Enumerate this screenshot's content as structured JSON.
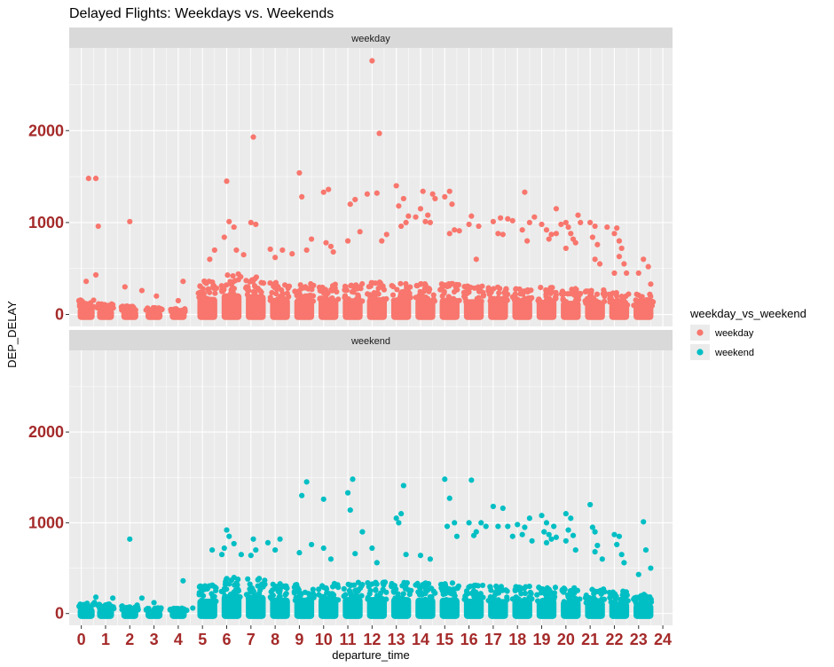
{
  "chart_data": {
    "type": "scatter",
    "title": "Delayed Flights: Weekdays vs. Weekends",
    "xlabel": "departure_time",
    "ylabel": "DEP_DELAY",
    "xlim": [
      -0.5,
      24.4
    ],
    "ylim": [
      -130,
      2900
    ],
    "x_ticks": [
      "0",
      "1",
      "2",
      "3",
      "4",
      "5",
      "6",
      "7",
      "8",
      "9",
      "10",
      "11",
      "12",
      "13",
      "14",
      "15",
      "16",
      "17",
      "18",
      "19",
      "20",
      "21",
      "22",
      "23",
      "24"
    ],
    "y_ticks": [
      "0",
      "1000",
      "2000"
    ],
    "legend": {
      "title": "weekday_vs_weekend",
      "position": "right",
      "entries": [
        {
          "label": "weekday",
          "color": "#f8766d"
        },
        {
          "label": "weekend",
          "color": "#00bfc4"
        }
      ]
    },
    "panels": [
      {
        "label": "weekday",
        "color": "#f8766d",
        "core_bands": [
          [
            0.2,
            150
          ],
          [
            1.0,
            110
          ],
          [
            2.0,
            90
          ],
          [
            3.0,
            70
          ],
          [
            4.0,
            60
          ],
          [
            5.2,
            350
          ],
          [
            6.2,
            420
          ],
          [
            7.2,
            400
          ],
          [
            8.2,
            330
          ],
          [
            9.2,
            320
          ],
          [
            10.2,
            320
          ],
          [
            11.2,
            320
          ],
          [
            12.2,
            340
          ],
          [
            13.2,
            330
          ],
          [
            14.2,
            320
          ],
          [
            15.2,
            330
          ],
          [
            16.2,
            300
          ],
          [
            17.2,
            300
          ],
          [
            18.2,
            290
          ],
          [
            19.2,
            290
          ],
          [
            20.2,
            270
          ],
          [
            21.2,
            260
          ],
          [
            22.2,
            230
          ],
          [
            23.2,
            210
          ]
        ],
        "points": [
          [
            0.3,
            1480
          ],
          [
            0.6,
            1480
          ],
          [
            0.7,
            960
          ],
          [
            0.6,
            430
          ],
          [
            0.2,
            360
          ],
          [
            2.0,
            1010
          ],
          [
            1.8,
            300
          ],
          [
            2.5,
            260
          ],
          [
            3.1,
            200
          ],
          [
            4.2,
            360
          ],
          [
            4.0,
            150
          ],
          [
            6.0,
            1450
          ],
          [
            6.1,
            1010
          ],
          [
            6.3,
            950
          ],
          [
            5.3,
            600
          ],
          [
            5.5,
            700
          ],
          [
            5.9,
            840
          ],
          [
            6.4,
            700
          ],
          [
            7.1,
            1930
          ],
          [
            7.0,
            1000
          ],
          [
            7.2,
            980
          ],
          [
            6.7,
            650
          ],
          [
            7.8,
            710
          ],
          [
            8.0,
            620
          ],
          [
            8.3,
            700
          ],
          [
            8.7,
            660
          ],
          [
            9.0,
            1540
          ],
          [
            9.1,
            1280
          ],
          [
            9.5,
            820
          ],
          [
            9.3,
            700
          ],
          [
            10.0,
            1330
          ],
          [
            10.2,
            1360
          ],
          [
            10.1,
            780
          ],
          [
            10.3,
            740
          ],
          [
            10.4,
            680
          ],
          [
            11.1,
            1200
          ],
          [
            11.3,
            1250
          ],
          [
            11.0,
            800
          ],
          [
            11.5,
            900
          ],
          [
            11.8,
            1310
          ],
          [
            12.0,
            2760
          ],
          [
            12.3,
            1970
          ],
          [
            12.2,
            1320
          ],
          [
            12.4,
            800
          ],
          [
            12.6,
            870
          ],
          [
            13.0,
            1400
          ],
          [
            13.3,
            1260
          ],
          [
            13.1,
            1180
          ],
          [
            13.5,
            1070
          ],
          [
            13.2,
            960
          ],
          [
            13.4,
            1000
          ],
          [
            13.8,
            1060
          ],
          [
            14.1,
            1340
          ],
          [
            14.0,
            1150
          ],
          [
            14.3,
            1080
          ],
          [
            14.5,
            1310
          ],
          [
            14.2,
            1010
          ],
          [
            14.4,
            1000
          ],
          [
            14.6,
            1260
          ],
          [
            15.2,
            1340
          ],
          [
            15.0,
            1280
          ],
          [
            15.3,
            1200
          ],
          [
            15.4,
            920
          ],
          [
            15.2,
            880
          ],
          [
            15.6,
            910
          ],
          [
            16.1,
            1070
          ],
          [
            16.0,
            980
          ],
          [
            16.4,
            960
          ],
          [
            16.3,
            600
          ],
          [
            17.0,
            1010
          ],
          [
            17.3,
            1050
          ],
          [
            17.2,
            880
          ],
          [
            17.4,
            870
          ],
          [
            17.6,
            1040
          ],
          [
            17.8,
            1020
          ],
          [
            18.2,
            920
          ],
          [
            18.3,
            1330
          ],
          [
            18.5,
            1000
          ],
          [
            18.4,
            800
          ],
          [
            18.7,
            1060
          ],
          [
            19.0,
            980
          ],
          [
            19.2,
            920
          ],
          [
            19.4,
            870
          ],
          [
            19.3,
            820
          ],
          [
            19.6,
            1150
          ],
          [
            19.6,
            880
          ],
          [
            19.8,
            980
          ],
          [
            20.0,
            1000
          ],
          [
            20.1,
            950
          ],
          [
            20.2,
            880
          ],
          [
            20.3,
            820
          ],
          [
            20.4,
            780
          ],
          [
            20.0,
            720
          ],
          [
            20.5,
            1080
          ],
          [
            20.6,
            1000
          ],
          [
            21.0,
            1000
          ],
          [
            21.2,
            960
          ],
          [
            21.1,
            840
          ],
          [
            21.3,
            760
          ],
          [
            21.2,
            600
          ],
          [
            21.4,
            550
          ],
          [
            21.7,
            950
          ],
          [
            22.1,
            940
          ],
          [
            22.0,
            880
          ],
          [
            22.2,
            800
          ],
          [
            22.3,
            720
          ],
          [
            22.2,
            630
          ],
          [
            22.4,
            550
          ],
          [
            22.0,
            450
          ],
          [
            22.5,
            450
          ],
          [
            23.2,
            600
          ],
          [
            23.4,
            520
          ],
          [
            23.0,
            450
          ],
          [
            23.5,
            330
          ]
        ]
      },
      {
        "label": "weekend",
        "color": "#00bfc4",
        "core_bands": [
          [
            0.2,
            120
          ],
          [
            1.0,
            100
          ],
          [
            2.0,
            90
          ],
          [
            3.0,
            60
          ],
          [
            4.0,
            60
          ],
          [
            5.2,
            300
          ],
          [
            6.2,
            380
          ],
          [
            7.2,
            370
          ],
          [
            8.2,
            320
          ],
          [
            9.2,
            320
          ],
          [
            10.2,
            330
          ],
          [
            11.2,
            330
          ],
          [
            12.2,
            330
          ],
          [
            13.2,
            330
          ],
          [
            14.2,
            320
          ],
          [
            15.2,
            320
          ],
          [
            16.2,
            300
          ],
          [
            17.2,
            290
          ],
          [
            18.2,
            290
          ],
          [
            19.2,
            290
          ],
          [
            20.2,
            270
          ],
          [
            21.2,
            260
          ],
          [
            22.2,
            240
          ],
          [
            23.2,
            200
          ]
        ],
        "points": [
          [
            0.6,
            180
          ],
          [
            1.3,
            170
          ],
          [
            2.0,
            820
          ],
          [
            2.5,
            170
          ],
          [
            3.0,
            120
          ],
          [
            4.2,
            360
          ],
          [
            4.6,
            60
          ],
          [
            5.4,
            700
          ],
          [
            5.8,
            650
          ],
          [
            6.0,
            920
          ],
          [
            6.1,
            850
          ],
          [
            6.3,
            770
          ],
          [
            5.9,
            720
          ],
          [
            6.6,
            650
          ],
          [
            7.1,
            820
          ],
          [
            7.2,
            700
          ],
          [
            7.0,
            640
          ],
          [
            7.7,
            780
          ],
          [
            8.2,
            820
          ],
          [
            8.0,
            700
          ],
          [
            9.3,
            1450
          ],
          [
            9.1,
            1300
          ],
          [
            9.5,
            760
          ],
          [
            9.0,
            670
          ],
          [
            10.0,
            1260
          ],
          [
            10.0,
            720
          ],
          [
            10.3,
            600
          ],
          [
            11.0,
            1330
          ],
          [
            11.2,
            1480
          ],
          [
            11.1,
            1140
          ],
          [
            11.6,
            900
          ],
          [
            11.3,
            660
          ],
          [
            12.0,
            720
          ],
          [
            12.2,
            560
          ],
          [
            13.3,
            1410
          ],
          [
            13.0,
            1050
          ],
          [
            13.2,
            1100
          ],
          [
            13.1,
            1000
          ],
          [
            13.4,
            650
          ],
          [
            14.0,
            640
          ],
          [
            14.4,
            600
          ],
          [
            15.0,
            1480
          ],
          [
            15.2,
            1270
          ],
          [
            15.4,
            1000
          ],
          [
            15.1,
            960
          ],
          [
            15.5,
            850
          ],
          [
            16.1,
            1470
          ],
          [
            16.0,
            1000
          ],
          [
            16.3,
            900
          ],
          [
            16.2,
            860
          ],
          [
            16.5,
            1000
          ],
          [
            16.7,
            960
          ],
          [
            17.0,
            1180
          ],
          [
            17.2,
            960
          ],
          [
            17.4,
            1160
          ],
          [
            17.6,
            960
          ],
          [
            17.8,
            850
          ],
          [
            18.0,
            980
          ],
          [
            18.3,
            950
          ],
          [
            18.5,
            1050
          ],
          [
            18.2,
            870
          ],
          [
            18.6,
            800
          ],
          [
            19.0,
            1080
          ],
          [
            19.2,
            1000
          ],
          [
            19.1,
            900
          ],
          [
            19.3,
            870
          ],
          [
            19.4,
            820
          ],
          [
            19.2,
            780
          ],
          [
            19.5,
            960
          ],
          [
            19.6,
            840
          ],
          [
            20.0,
            1100
          ],
          [
            20.2,
            1050
          ],
          [
            20.1,
            920
          ],
          [
            20.3,
            860
          ],
          [
            20.0,
            800
          ],
          [
            20.4,
            700
          ],
          [
            21.0,
            1200
          ],
          [
            21.1,
            950
          ],
          [
            21.2,
            900
          ],
          [
            21.3,
            750
          ],
          [
            21.2,
            680
          ],
          [
            21.5,
            600
          ],
          [
            22.0,
            870
          ],
          [
            22.2,
            850
          ],
          [
            22.1,
            760
          ],
          [
            22.3,
            650
          ],
          [
            22.4,
            560
          ],
          [
            23.2,
            1010
          ],
          [
            23.3,
            700
          ],
          [
            23.5,
            500
          ],
          [
            23.0,
            430
          ]
        ]
      }
    ]
  }
}
